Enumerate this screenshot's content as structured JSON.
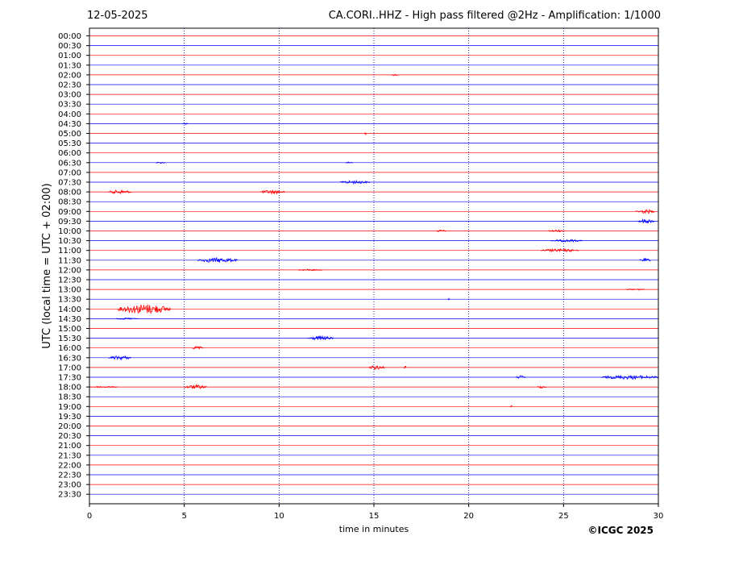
{
  "header": {
    "date": "12-05-2025",
    "title": "CA.CORI..HHZ - High pass filtered @2Hz - Amplification: 1/1000"
  },
  "footer": {
    "copyright": "©ICGC 2025"
  },
  "chart_data": {
    "type": "line",
    "title": "CA.CORI..HHZ - High pass filtered @2Hz - Amplification: 1/1000",
    "xlabel": "time in minutes",
    "ylabel": "UTC (local time = UTC + 02:00)",
    "xlim": [
      0,
      30
    ],
    "xticks": [
      0,
      5,
      10,
      15,
      20,
      25,
      30
    ],
    "xtick_labels": [
      "0",
      "5",
      "10",
      "15",
      "20",
      "25",
      "30"
    ],
    "vertical_gridlines_at": [
      5,
      10,
      15,
      20,
      25
    ],
    "grid": "vertical dotted",
    "colors": {
      "even_rows": "#ff0000",
      "odd_rows": "#0000ff"
    },
    "row_labels": [
      "00:00",
      "00:30",
      "01:00",
      "01:30",
      "02:00",
      "02:30",
      "03:00",
      "03:30",
      "04:00",
      "04:30",
      "05:00",
      "05:30",
      "06:00",
      "06:30",
      "07:00",
      "07:30",
      "08:00",
      "08:30",
      "09:00",
      "09:30",
      "10:00",
      "10:30",
      "11:00",
      "11:30",
      "12:00",
      "12:30",
      "13:00",
      "13:30",
      "14:00",
      "14:30",
      "15:00",
      "15:30",
      "16:00",
      "16:30",
      "17:00",
      "17:30",
      "18:00",
      "18:30",
      "19:00",
      "19:30",
      "20:00",
      "20:30",
      "21:00",
      "21:30",
      "22:00",
      "22:30",
      "23:00",
      "23:30"
    ],
    "events": [
      {
        "row": "02:00",
        "start": 15.9,
        "end": 16.3,
        "amp": 1.0
      },
      {
        "row": "04:30",
        "start": 4.9,
        "end": 5.2,
        "amp": 1.0
      },
      {
        "row": "05:00",
        "start": 14.5,
        "end": 14.6,
        "amp": 2.0
      },
      {
        "row": "06:30",
        "start": 3.5,
        "end": 4.0,
        "amp": 1.0
      },
      {
        "row": "06:30",
        "start": 13.5,
        "end": 13.9,
        "amp": 1.0
      },
      {
        "row": "07:30",
        "start": 13.2,
        "end": 14.8,
        "amp": 2.0
      },
      {
        "row": "08:00",
        "start": 1.0,
        "end": 2.2,
        "amp": 2.5
      },
      {
        "row": "08:00",
        "start": 9.0,
        "end": 10.3,
        "amp": 2.5
      },
      {
        "row": "09:00",
        "start": 28.8,
        "end": 29.8,
        "amp": 2.5
      },
      {
        "row": "09:30",
        "start": 28.9,
        "end": 29.8,
        "amp": 2.5
      },
      {
        "row": "10:00",
        "start": 18.3,
        "end": 18.8,
        "amp": 1.5
      },
      {
        "row": "10:00",
        "start": 24.2,
        "end": 25.0,
        "amp": 1.5
      },
      {
        "row": "10:30",
        "start": 24.3,
        "end": 26.0,
        "amp": 1.5
      },
      {
        "row": "11:00",
        "start": 23.8,
        "end": 25.8,
        "amp": 2.0
      },
      {
        "row": "11:30",
        "start": 5.7,
        "end": 7.8,
        "amp": 3.0
      },
      {
        "row": "11:30",
        "start": 29.0,
        "end": 29.6,
        "amp": 2.0
      },
      {
        "row": "12:00",
        "start": 11.0,
        "end": 12.3,
        "amp": 1.0
      },
      {
        "row": "13:00",
        "start": 28.3,
        "end": 29.3,
        "amp": 1.0
      },
      {
        "row": "13:30",
        "start": 18.9,
        "end": 19.0,
        "amp": 1.0
      },
      {
        "row": "14:00",
        "start": 1.5,
        "end": 4.3,
        "amp": 6.0
      },
      {
        "row": "14:30",
        "start": 1.4,
        "end": 2.6,
        "amp": 1.0
      },
      {
        "row": "15:30",
        "start": 11.5,
        "end": 12.9,
        "amp": 2.5
      },
      {
        "row": "16:00",
        "start": 5.4,
        "end": 6.0,
        "amp": 2.0
      },
      {
        "row": "16:30",
        "start": 1.0,
        "end": 2.2,
        "amp": 2.5
      },
      {
        "row": "17:00",
        "start": 14.7,
        "end": 15.6,
        "amp": 2.5
      },
      {
        "row": "17:00",
        "start": 16.6,
        "end": 16.7,
        "amp": 2.5
      },
      {
        "row": "17:30",
        "start": 22.5,
        "end": 23.0,
        "amp": 2.0
      },
      {
        "row": "17:30",
        "start": 27.0,
        "end": 30.0,
        "amp": 2.5
      },
      {
        "row": "18:00",
        "start": 0.0,
        "end": 1.5,
        "amp": 1.0
      },
      {
        "row": "18:00",
        "start": 5.0,
        "end": 6.2,
        "amp": 2.5
      },
      {
        "row": "18:00",
        "start": 23.6,
        "end": 24.1,
        "amp": 1.5
      },
      {
        "row": "19:00",
        "start": 22.2,
        "end": 22.3,
        "amp": 1.5
      }
    ]
  }
}
